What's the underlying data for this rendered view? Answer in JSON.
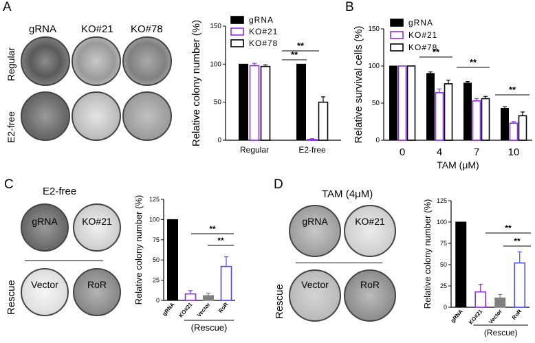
{
  "panels": {
    "A": {
      "letter": "A",
      "columns": [
        "gRNA",
        "KO#21",
        "KO#78"
      ],
      "rows": [
        "Regular",
        "E2-free"
      ]
    },
    "B": {
      "letter": "B"
    },
    "C": {
      "letter": "C",
      "title": "E2-free",
      "dish_labels": {
        "gRNA": "gRNA",
        "ko": "KO#21",
        "vector": "Vector",
        "ror": "RoR"
      },
      "row_label": "Rescue"
    },
    "D": {
      "letter": "D",
      "title": "TAM (4μM)",
      "dish_labels": {
        "gRNA": "gRNA",
        "ko": "KO#21",
        "vector": "Vector",
        "ror": "RoR"
      },
      "row_label": "Rescue"
    }
  },
  "chart_data": [
    {
      "id": "A",
      "type": "bar",
      "ylabel": "Relative colony number (%)",
      "xlabel": "",
      "categories": [
        "Regular",
        "E2-free"
      ],
      "ylim": [
        0,
        150
      ],
      "yticks": [
        0,
        50,
        100,
        150
      ],
      "series": [
        {
          "name": "gRNA",
          "values": [
            100,
            100
          ],
          "err": [
            0,
            0
          ],
          "color": "#000000",
          "fill": "#000000"
        },
        {
          "name": "KO#21",
          "values": [
            98,
            1
          ],
          "err": [
            3,
            1
          ],
          "color": "#8a2be2",
          "fill": "#ffffff"
        },
        {
          "name": "KO#78",
          "values": [
            97,
            50
          ],
          "err": [
            2,
            7
          ],
          "color": "#000000",
          "fill": "#ffffff"
        }
      ],
      "significance": [
        "**",
        "**"
      ],
      "legend": "top-right"
    },
    {
      "id": "B",
      "type": "bar",
      "ylabel": "Relative survival cells (%)",
      "xlabel": "TAM (μM)",
      "categories": [
        "0",
        "4",
        "7",
        "10"
      ],
      "ylim": [
        0,
        150
      ],
      "yticks": [
        0,
        50,
        100,
        150
      ],
      "series": [
        {
          "name": "gRNA",
          "values": [
            100,
            90,
            77,
            43
          ],
          "err": [
            0,
            2,
            2,
            2
          ],
          "color": "#000000",
          "fill": "#000000"
        },
        {
          "name": "KO#21",
          "values": [
            100,
            64,
            53,
            23
          ],
          "err": [
            0,
            5,
            3,
            2
          ],
          "color": "#8a2be2",
          "fill": "#ffffff"
        },
        {
          "name": "KO#78",
          "values": [
            100,
            76,
            56,
            33
          ],
          "err": [
            0,
            5,
            3,
            5
          ],
          "color": "#000000",
          "fill": "#ffffff"
        }
      ],
      "significance": [
        "**",
        "**",
        "**"
      ],
      "legend": "top-right"
    },
    {
      "id": "C",
      "type": "bar",
      "ylabel": "Relative colony number (%)",
      "xlabel": "(Rescue)",
      "categories": [
        "gRNA",
        "KO#21",
        "Vector",
        "RoR"
      ],
      "ylim": [
        0,
        125
      ],
      "yticks": [
        0,
        25,
        50,
        75,
        100,
        125
      ],
      "values": [
        100,
        8,
        6,
        42
      ],
      "err": [
        0,
        4,
        3,
        12
      ],
      "colors": [
        "#000000",
        "#8a2be2",
        "#808080",
        "#4a4aff"
      ],
      "fills": [
        "#000000",
        "#ffffff",
        "#808080",
        "#ffffff"
      ],
      "significance": [
        "**",
        "**"
      ]
    },
    {
      "id": "D",
      "type": "bar",
      "ylabel": "Relative colony number (%)",
      "xlabel": "(Rescue)",
      "categories": [
        "gRNA",
        "KO#21",
        "Vector",
        "RoR"
      ],
      "ylim": [
        0,
        125
      ],
      "yticks": [
        0,
        25,
        50,
        75,
        100,
        125
      ],
      "values": [
        100,
        18,
        11,
        52
      ],
      "err": [
        0,
        9,
        4,
        13
      ],
      "colors": [
        "#000000",
        "#8a2be2",
        "#808080",
        "#4a4aff"
      ],
      "fills": [
        "#000000",
        "#ffffff",
        "#808080",
        "#ffffff"
      ],
      "significance": [
        "**",
        "**"
      ]
    }
  ]
}
